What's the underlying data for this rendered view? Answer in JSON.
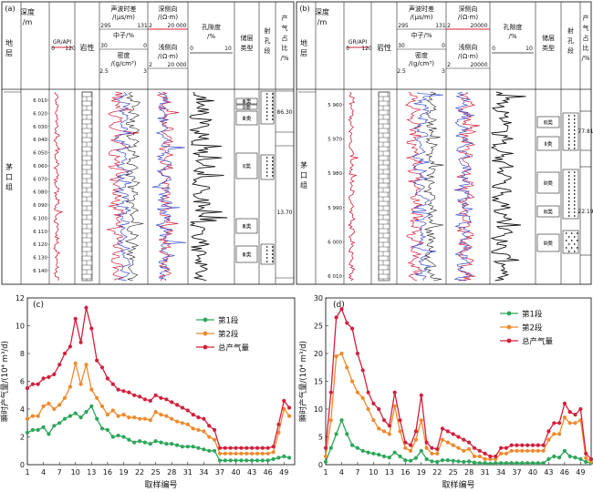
{
  "wells": [
    {
      "panel": "(a)",
      "headers": {
        "strata": "地层",
        "depth": [
          "深度",
          "/m"
        ],
        "gr": "GR/API",
        "gr_min": "0",
        "gr_max": "120",
        "lithology": "岩性",
        "sonic": [
          "声波时差",
          "/(μs/m)"
        ],
        "sonic_min": "295",
        "sonic_max": "131",
        "neutron": "中子/%",
        "neutron_min": "30",
        "neutron_max": "0",
        "density": [
          "密度",
          "/(g/cm³)"
        ],
        "density_min": "2.5",
        "density_max": "3",
        "deep_res": [
          "深侧向",
          "/(Ω·m)"
        ],
        "deep_res_min": "2",
        "deep_res_max": "20 000",
        "shallow_res": [
          "浅侧向",
          "/(Ω·m)"
        ],
        "shallow_res_min": "2",
        "shallow_res_max": "20 000",
        "porosity": [
          "孔隙度",
          "/%"
        ],
        "porosity_min": "0",
        "porosity_max": "10",
        "reservoir_type": [
          "储层",
          "类型"
        ],
        "perforation": [
          "射",
          "孔",
          "段"
        ],
        "gas_share": [
          "产",
          "气",
          "占",
          "比",
          "/%"
        ]
      },
      "formation": [
        "茅",
        "口",
        "组"
      ],
      "depth_ticks": [
        "6 010",
        "6 020",
        "6 030",
        "6 040",
        "6 050",
        "6 060",
        "6 070",
        "6 080",
        "6 090",
        "6 100",
        "6 110",
        "6 120",
        "6 130",
        "6 140"
      ],
      "reservoir_labels": [
        "Ⅲ类",
        "Ⅱ类",
        "Ⅲ类",
        "Ⅱ类",
        "Ⅲ类",
        "Ⅲ类"
      ],
      "gas_shares": [
        "86.30",
        "13.70"
      ]
    },
    {
      "panel": "(b)",
      "headers": {
        "strata": "地层",
        "depth": [
          "深度",
          "/m"
        ],
        "gr": "GR/API",
        "gr_min": "0",
        "gr_max": "120",
        "lithology": "岩性",
        "sonic": [
          "声波时差",
          "/(μs/m)"
        ],
        "sonic_min": "295",
        "sonic_max": "131",
        "neutron": "中子/%",
        "neutron_min": "30",
        "neutron_max": "0",
        "density": [
          "密度",
          "/(g/cm³)"
        ],
        "density_min": "2.5",
        "density_max": "3",
        "deep_res": [
          "深侧向",
          "/(Ω·m)"
        ],
        "deep_res_min": "2",
        "deep_res_max": "20000",
        "shallow_res": [
          "浅侧向",
          "/(Ω·m)"
        ],
        "shallow_res_min": "2",
        "shallow_res_max": "20000",
        "porosity": [
          "孔隙度",
          "/%"
        ],
        "porosity_min": "0",
        "porosity_max": "10",
        "reservoir_type": [
          "储层",
          "类型"
        ],
        "perforation": [
          "射",
          "孔",
          "段"
        ],
        "gas_share": [
          "产",
          "气",
          "占",
          "比",
          "/%"
        ]
      },
      "formation": [
        "茅",
        "口",
        "组"
      ],
      "depth_ticks": [
        "5 960",
        "5 970",
        "5 980",
        "5 990",
        "6 000",
        "6 010"
      ],
      "reservoir_labels": [
        "Ⅲ类",
        "Ⅱ类",
        "Ⅲ类",
        "Ⅲ类",
        "Ⅲ类",
        "Ⅱ类"
      ],
      "gas_shares": [
        "77.81",
        "22.19"
      ]
    }
  ],
  "chart_data": [
    {
      "panel": "(c)",
      "type": "line",
      "xlabel": "取样编号",
      "ylabel": "瞬时产气量/(10⁴ m³/d)",
      "xlim": [
        1,
        51
      ],
      "ylim": [
        0,
        12
      ],
      "xticks": [
        1,
        4,
        7,
        10,
        13,
        16,
        19,
        22,
        25,
        28,
        31,
        34,
        37,
        40,
        43,
        46,
        49
      ],
      "yticks": [
        0,
        2,
        4,
        6,
        8,
        10,
        12
      ],
      "legend_position": "top-center",
      "x": [
        1,
        2,
        3,
        4,
        5,
        6,
        7,
        8,
        9,
        10,
        11,
        12,
        13,
        14,
        15,
        16,
        17,
        18,
        19,
        20,
        21,
        22,
        23,
        24,
        25,
        26,
        27,
        28,
        29,
        30,
        31,
        32,
        33,
        34,
        35,
        36,
        37,
        38,
        39,
        40,
        41,
        42,
        43,
        44,
        45,
        46,
        47,
        48,
        49,
        50
      ],
      "series": [
        {
          "name": "第1段",
          "color": "#2ca65a",
          "values": [
            2.3,
            2.5,
            2.5,
            2.7,
            2.2,
            2.8,
            3.0,
            3.3,
            3.5,
            3.7,
            3.4,
            3.8,
            4.2,
            3.3,
            2.6,
            2.5,
            2.0,
            2.1,
            2.0,
            1.8,
            1.6,
            1.7,
            1.6,
            1.5,
            1.7,
            1.6,
            1.5,
            1.5,
            1.4,
            1.3,
            1.3,
            1.3,
            1.2,
            1.1,
            1.0,
            1.0,
            0.3,
            0.3,
            0.3,
            0.3,
            0.3,
            0.3,
            0.3,
            0.3,
            0.3,
            0.3,
            0.4,
            0.5,
            0.6,
            0.5
          ]
        },
        {
          "name": "第2段",
          "color": "#ee8a2b",
          "values": [
            3.3,
            3.5,
            3.5,
            4.2,
            4.4,
            4.0,
            4.3,
            4.8,
            5.6,
            7.3,
            5.8,
            7.2,
            5.4,
            4.8,
            4.2,
            3.6,
            3.9,
            3.5,
            3.6,
            3.4,
            3.4,
            3.3,
            3.3,
            3.2,
            3.8,
            3.6,
            3.5,
            3.3,
            3.1,
            3.0,
            2.9,
            2.6,
            2.5,
            2.4,
            2.0,
            1.8,
            0.8,
            0.8,
            0.8,
            0.8,
            0.8,
            0.8,
            0.8,
            0.8,
            0.8,
            0.8,
            0.9,
            2.3,
            4.0,
            3.5
          ]
        },
        {
          "name": "总产气量",
          "color": "#d1203d",
          "values": [
            5.5,
            5.8,
            5.8,
            6.2,
            6.3,
            6.5,
            7.2,
            8.0,
            8.5,
            10.5,
            8.8,
            11.3,
            9.8,
            7.5,
            7.0,
            6.2,
            5.8,
            5.4,
            5.3,
            5.2,
            5.0,
            4.9,
            4.7,
            4.6,
            5.0,
            4.8,
            4.7,
            4.5,
            4.3,
            4.1,
            3.9,
            3.6,
            3.4,
            3.3,
            2.8,
            2.5,
            1.2,
            1.2,
            1.2,
            1.2,
            1.2,
            1.2,
            1.2,
            1.2,
            1.2,
            1.2,
            1.3,
            2.9,
            4.6,
            4.1
          ]
        }
      ]
    },
    {
      "panel": "(d)",
      "type": "line",
      "xlabel": "取样编号",
      "ylabel": "瞬时产气量/(10⁴ m³/d)",
      "xlim": [
        1,
        51
      ],
      "ylim": [
        0,
        30
      ],
      "xticks": [
        1,
        4,
        7,
        10,
        13,
        16,
        19,
        22,
        25,
        28,
        31,
        34,
        37,
        40,
        43,
        46,
        49
      ],
      "yticks": [
        0,
        5,
        10,
        15,
        20,
        25,
        30
      ],
      "legend_position": "top-center",
      "x": [
        1,
        2,
        3,
        4,
        5,
        6,
        7,
        8,
        9,
        10,
        11,
        12,
        13,
        14,
        15,
        16,
        17,
        18,
        19,
        20,
        21,
        22,
        23,
        24,
        25,
        26,
        27,
        28,
        29,
        30,
        31,
        32,
        33,
        34,
        35,
        36,
        37,
        38,
        39,
        40,
        41,
        42,
        43,
        44,
        45,
        46,
        47,
        48,
        49,
        50,
        51
      ],
      "series": [
        {
          "name": "第1段",
          "color": "#2ca65a",
          "values": [
            0.5,
            3.0,
            5.5,
            8.0,
            5.5,
            3.5,
            3.0,
            2.5,
            2.2,
            2.0,
            1.8,
            1.5,
            1.3,
            2.2,
            1.5,
            0.8,
            0.7,
            1.2,
            2.5,
            1.0,
            0.6,
            0.5,
            0.8,
            0.8,
            0.7,
            0.6,
            0.5,
            0.6,
            0.4,
            0.3,
            0.3,
            0.2,
            0.3,
            0.3,
            0.3,
            0.3,
            0.3,
            0.3,
            0.3,
            0.3,
            0.3,
            0.3,
            1.0,
            1.5,
            1.3,
            2.5,
            1.5,
            1.3,
            1.0,
            0.5,
            0.3
          ]
        },
        {
          "name": "第2段",
          "color": "#ee8a2b",
          "values": [
            1.5,
            8.0,
            19.5,
            20.0,
            17.5,
            15.0,
            13.0,
            12.0,
            10.0,
            8.0,
            6.5,
            6.0,
            5.5,
            10.5,
            6.0,
            3.0,
            2.5,
            4.5,
            8.0,
            3.0,
            2.0,
            2.0,
            4.5,
            4.0,
            3.5,
            3.0,
            2.5,
            2.8,
            1.5,
            1.5,
            1.0,
            1.0,
            1.0,
            2.0,
            2.0,
            2.5,
            2.5,
            2.5,
            2.5,
            2.5,
            2.5,
            2.5,
            4.5,
            5.5,
            5.5,
            8.5,
            7.5,
            7.5,
            8.0,
            1.2,
            0.5
          ]
        },
        {
          "name": "总产气量",
          "color": "#d1203d",
          "values": [
            3.0,
            13.0,
            26.5,
            28.0,
            25.5,
            24.5,
            20.0,
            17.0,
            13.0,
            11.0,
            10.0,
            8.0,
            7.0,
            13.0,
            8.0,
            4.0,
            3.5,
            6.0,
            12.5,
            4.0,
            3.0,
            2.8,
            6.5,
            6.0,
            5.5,
            5.0,
            4.5,
            4.0,
            3.0,
            2.5,
            2.0,
            1.5,
            1.5,
            3.0,
            3.0,
            3.5,
            3.5,
            3.5,
            3.5,
            3.5,
            3.5,
            3.5,
            6.0,
            7.5,
            7.5,
            11.0,
            9.5,
            9.0,
            10.0,
            2.0,
            1.0
          ]
        }
      ]
    }
  ]
}
